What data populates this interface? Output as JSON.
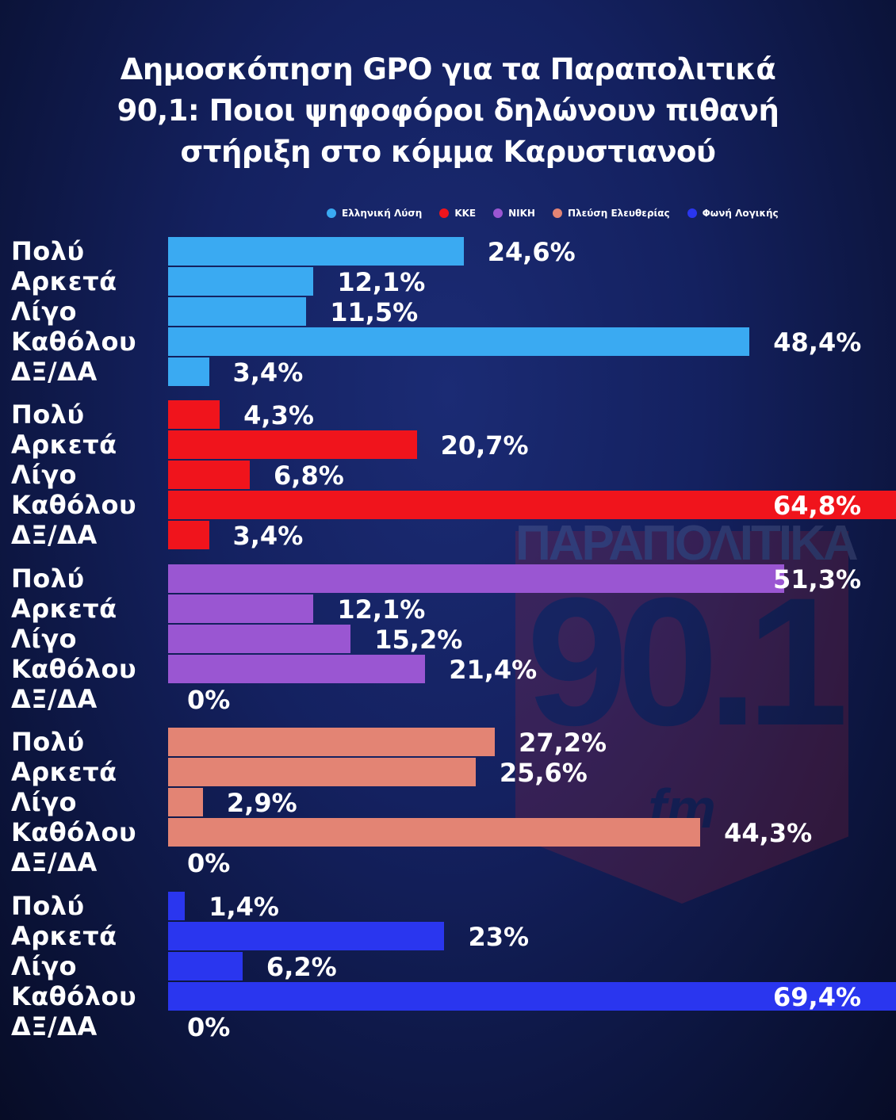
{
  "title": [
    "Δημοσκόπηση GPO για τα Παραπολιτικά",
    "90,1: Ποιοι ψηφοφόροι δηλώνουν πιθανή",
    "στήριξη στο κόμμα Καρυστιανού"
  ],
  "watermark": {
    "top": "ΠΑΡΑΠΟΛΙΤΙΚΑ",
    "number": "90.1",
    "unit": "fm"
  },
  "chart_data": {
    "type": "bar",
    "orientation": "horizontal",
    "categories": [
      "Πολύ",
      "Αρκετά",
      "Λίγο",
      "Καθόλου",
      "ΔΞ/ΔΑ"
    ],
    "value_unit": "%",
    "legend_position": "top-right",
    "series": [
      {
        "name": "Ελληνική Λύση",
        "color": "#3aaaf2",
        "values": [
          24.6,
          12.1,
          11.5,
          48.4,
          3.4
        ],
        "labels": [
          "24,6%",
          "12,1%",
          "11,5%",
          "48,4%",
          "3,4%"
        ]
      },
      {
        "name": "ΚΚΕ",
        "color": "#f0141c",
        "values": [
          4.3,
          20.7,
          6.8,
          64.8,
          3.4
        ],
        "labels": [
          "4,3%",
          "20,7%",
          "6,8%",
          "64,8%",
          "3,4%"
        ]
      },
      {
        "name": "ΝΙΚΗ",
        "color": "#9a56d2",
        "values": [
          51.3,
          12.1,
          15.2,
          21.4,
          0
        ],
        "labels": [
          "51,3%",
          "12,1%",
          "15,2%",
          "21,4%",
          "0%"
        ]
      },
      {
        "name": "Πλεύση Ελευθερίας",
        "color": "#e38474",
        "values": [
          27.2,
          25.6,
          2.9,
          44.3,
          0
        ],
        "labels": [
          "27,2%",
          "25,6%",
          "2,9%",
          "44,3%",
          "0%"
        ]
      },
      {
        "name": "Φωνή Λογικής",
        "color": "#2a36ef",
        "values": [
          1.4,
          23,
          6.2,
          69.4,
          0
        ],
        "labels": [
          "1,4%",
          "23%",
          "6,2%",
          "69,4%",
          "0%"
        ]
      }
    ]
  }
}
